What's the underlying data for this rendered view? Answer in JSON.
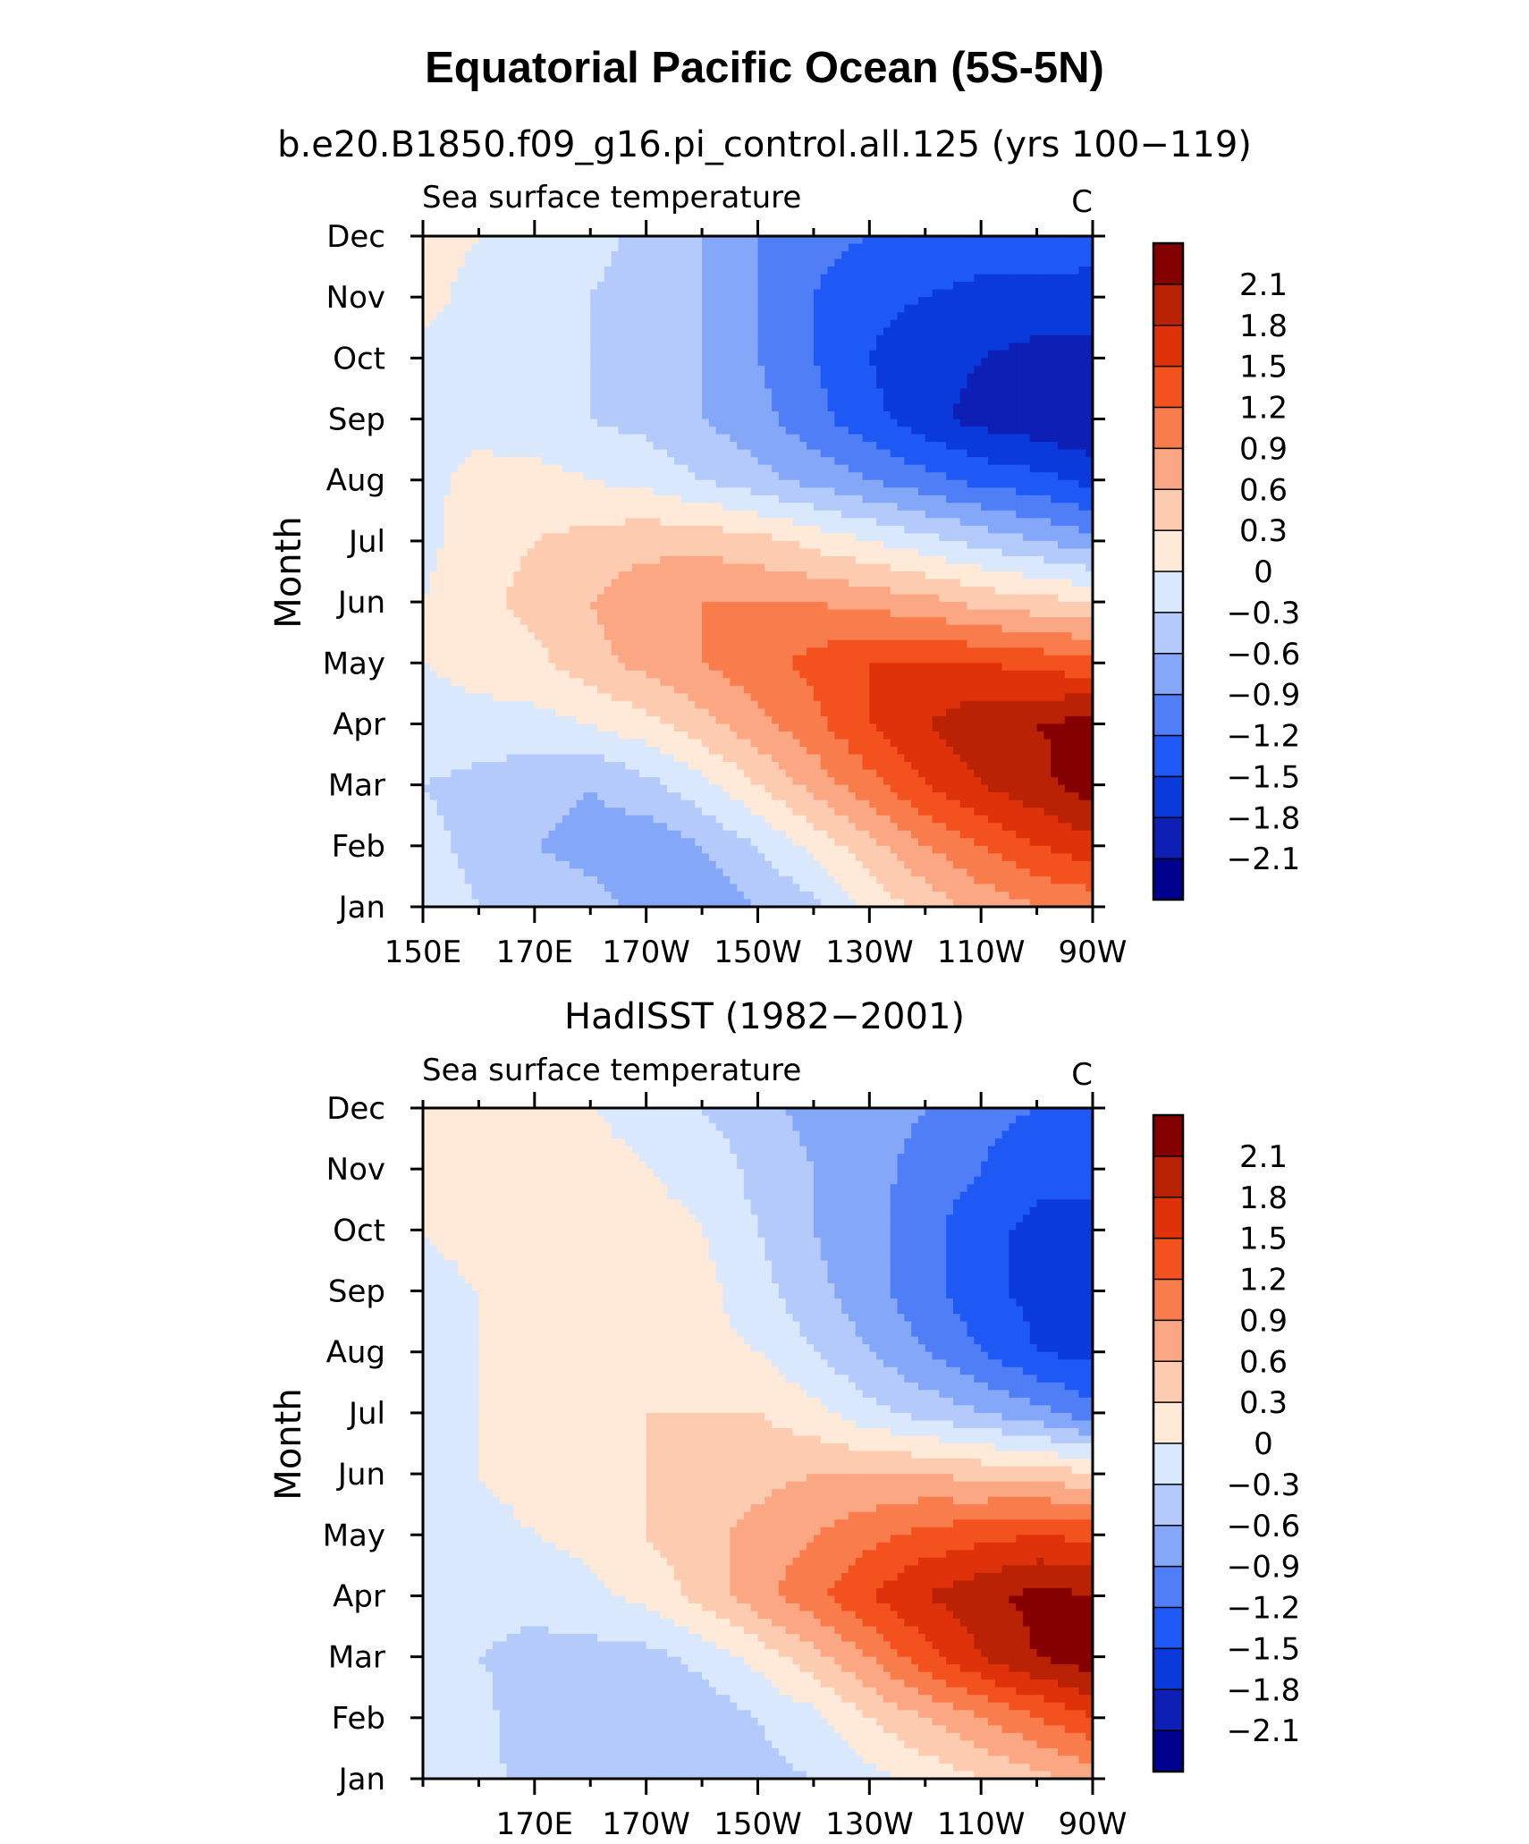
{
  "chart_data": {
    "type": "heatmap",
    "title": "Equatorial Pacific Ocean (5S-5N)",
    "levels": [
      -2.1,
      -1.8,
      -1.5,
      -1.2,
      -0.9,
      -0.6,
      -0.3,
      0,
      0.3,
      0.6,
      0.9,
      1.2,
      1.5,
      1.8,
      2.1
    ],
    "level_labels": [
      "2.1",
      "1.8",
      "1.5",
      "1.2",
      "0.9",
      "0.6",
      "0.3",
      "0",
      "−0.3",
      "−0.6",
      "−0.9",
      "−1.2",
      "−1.5",
      "−1.8",
      "−2.1"
    ],
    "colors": [
      "#00008f",
      "#0d1fb4",
      "#0a3adb",
      "#1f59f5",
      "#4f7ef7",
      "#85a7f8",
      "#b4cafa",
      "#d9e8fc",
      "#ffe9d8",
      "#fdcbb0",
      "#fba783",
      "#f97d4c",
      "#f3521e",
      "#e0320a",
      "#b92204",
      "#850000"
    ],
    "panels": [
      {
        "subtitle": "b.e20.B1850.f09_g16.pi_control.all.125 (yrs 100−119)",
        "left_string": "Sea surface temperature",
        "right_string": "C",
        "ylabel": "Month",
        "xticklabels": [
          "150E",
          "170E",
          "170W",
          "150W",
          "130W",
          "110W",
          "90W"
        ],
        "xlim": [
          150,
          270
        ],
        "months": [
          "Jan",
          "Feb",
          "Mar",
          "Apr",
          "May",
          "Jun",
          "Jul",
          "Aug",
          "Sep",
          "Oct",
          "Nov",
          "Dec"
        ],
        "lon": [
          150,
          160,
          170,
          180,
          190,
          200,
          210,
          220,
          230,
          240,
          250,
          260,
          270
        ],
        "values": [
          [
            -0.1,
            -0.3,
            -0.4,
            -0.5,
            -0.7,
            -0.8,
            -0.6,
            -0.4,
            0.1,
            0.4,
            0.7,
            0.9,
            1.0
          ],
          [
            -0.2,
            -0.4,
            -0.6,
            -0.7,
            -0.8,
            -0.6,
            -0.3,
            0.1,
            0.5,
            0.9,
            1.2,
            1.5,
            1.7
          ],
          [
            -0.3,
            -0.4,
            -0.5,
            -0.6,
            -0.4,
            -0.1,
            0.3,
            0.7,
            1.1,
            1.5,
            1.8,
            2.0,
            2.3
          ],
          [
            -0.1,
            -0.1,
            -0.1,
            0.0,
            0.2,
            0.5,
            0.8,
            1.1,
            1.5,
            1.8,
            2.0,
            2.1,
            2.2
          ],
          [
            0.0,
            0.1,
            0.2,
            0.5,
            0.7,
            0.9,
            1.1,
            1.3,
            1.5,
            1.5,
            1.5,
            1.4,
            1.3
          ],
          [
            0.0,
            0.2,
            0.4,
            0.6,
            0.8,
            0.9,
            0.9,
            0.9,
            0.8,
            0.7,
            0.5,
            0.4,
            0.3
          ],
          [
            -0.1,
            0.2,
            0.3,
            0.4,
            0.5,
            0.5,
            0.4,
            0.2,
            0.0,
            -0.2,
            -0.4,
            -0.6,
            -0.8
          ],
          [
            -0.1,
            0.1,
            0.1,
            0.0,
            -0.1,
            -0.3,
            -0.5,
            -0.7,
            -0.9,
            -1.1,
            -1.3,
            -1.4,
            -1.6
          ],
          [
            -0.1,
            -0.1,
            -0.2,
            -0.3,
            -0.4,
            -0.6,
            -0.8,
            -1.1,
            -1.4,
            -1.7,
            -1.9,
            -2.0,
            -2.1
          ],
          [
            -0.1,
            -0.2,
            -0.3,
            -0.3,
            -0.4,
            -0.6,
            -0.9,
            -1.2,
            -1.5,
            -1.7,
            -1.8,
            -1.9,
            -1.9
          ],
          [
            0.1,
            -0.1,
            -0.2,
            -0.3,
            -0.4,
            -0.6,
            -0.9,
            -1.2,
            -1.4,
            -1.5,
            -1.6,
            -1.6,
            -1.6
          ],
          [
            0.1,
            0.0,
            -0.1,
            -0.2,
            -0.4,
            -0.6,
            -0.9,
            -1.1,
            -1.2,
            -1.3,
            -1.3,
            -1.3,
            -1.4
          ]
        ]
      },
      {
        "subtitle": "HadISST (1982−2001)",
        "left_string": "Sea surface temperature",
        "right_string": "C",
        "ylabel": "Month",
        "xticklabels": [
          "170E",
          "170W",
          "150W",
          "130W",
          "110W",
          "90W"
        ],
        "xlim": [
          150,
          270
        ],
        "months": [
          "Jan",
          "Feb",
          "Mar",
          "Apr",
          "May",
          "Jun",
          "Jul",
          "Aug",
          "Sep",
          "Oct",
          "Nov",
          "Dec"
        ],
        "lon": [
          150,
          160,
          170,
          180,
          190,
          200,
          210,
          220,
          230,
          240,
          250,
          260,
          270
        ],
        "values": [
          [
            0.0,
            -0.2,
            -0.4,
            -0.5,
            -0.5,
            -0.5,
            -0.4,
            -0.3,
            -0.1,
            0.1,
            0.3,
            0.5,
            0.7
          ],
          [
            -0.1,
            -0.2,
            -0.5,
            -0.5,
            -0.5,
            -0.5,
            -0.3,
            -0.1,
            0.3,
            0.6,
            0.9,
            1.2,
            1.5
          ],
          [
            -0.2,
            -0.3,
            -0.4,
            -0.4,
            -0.4,
            -0.2,
            0.1,
            0.5,
            0.9,
            1.4,
            1.8,
            2.1,
            2.3
          ],
          [
            -0.2,
            -0.2,
            -0.2,
            -0.1,
            0.1,
            0.4,
            0.8,
            1.1,
            1.5,
            1.8,
            2.0,
            2.2,
            2.1
          ],
          [
            -0.1,
            -0.1,
            0.0,
            0.1,
            0.3,
            0.5,
            0.7,
            0.9,
            1.1,
            1.3,
            1.4,
            1.5,
            1.4
          ],
          [
            -0.1,
            0.0,
            0.1,
            0.2,
            0.3,
            0.4,
            0.5,
            0.6,
            0.6,
            0.6,
            0.5,
            0.5,
            0.3
          ],
          [
            -0.1,
            0.0,
            0.1,
            0.2,
            0.3,
            0.3,
            0.3,
            0.1,
            -0.2,
            -0.4,
            -0.6,
            -0.8,
            -1.1
          ],
          [
            -0.1,
            0.0,
            0.1,
            0.1,
            0.2,
            0.1,
            0.0,
            -0.3,
            -0.6,
            -0.9,
            -1.2,
            -1.5,
            -1.6
          ],
          [
            -0.1,
            0.0,
            0.2,
            0.3,
            0.2,
            0.1,
            -0.2,
            -0.5,
            -0.8,
            -1.1,
            -1.4,
            -1.6,
            -1.7
          ],
          [
            0.0,
            0.1,
            0.1,
            0.2,
            0.1,
            0.0,
            -0.3,
            -0.6,
            -0.8,
            -1.1,
            -1.4,
            -1.6,
            -1.6
          ],
          [
            0.1,
            0.1,
            0.1,
            0.1,
            0.0,
            -0.1,
            -0.4,
            -0.6,
            -0.8,
            -1.0,
            -1.2,
            -1.4,
            -1.4
          ],
          [
            0.1,
            0.1,
            0.1,
            0.0,
            -0.1,
            -0.3,
            -0.5,
            -0.7,
            -0.8,
            -0.9,
            -1.1,
            -1.2,
            -1.3
          ]
        ]
      }
    ]
  }
}
